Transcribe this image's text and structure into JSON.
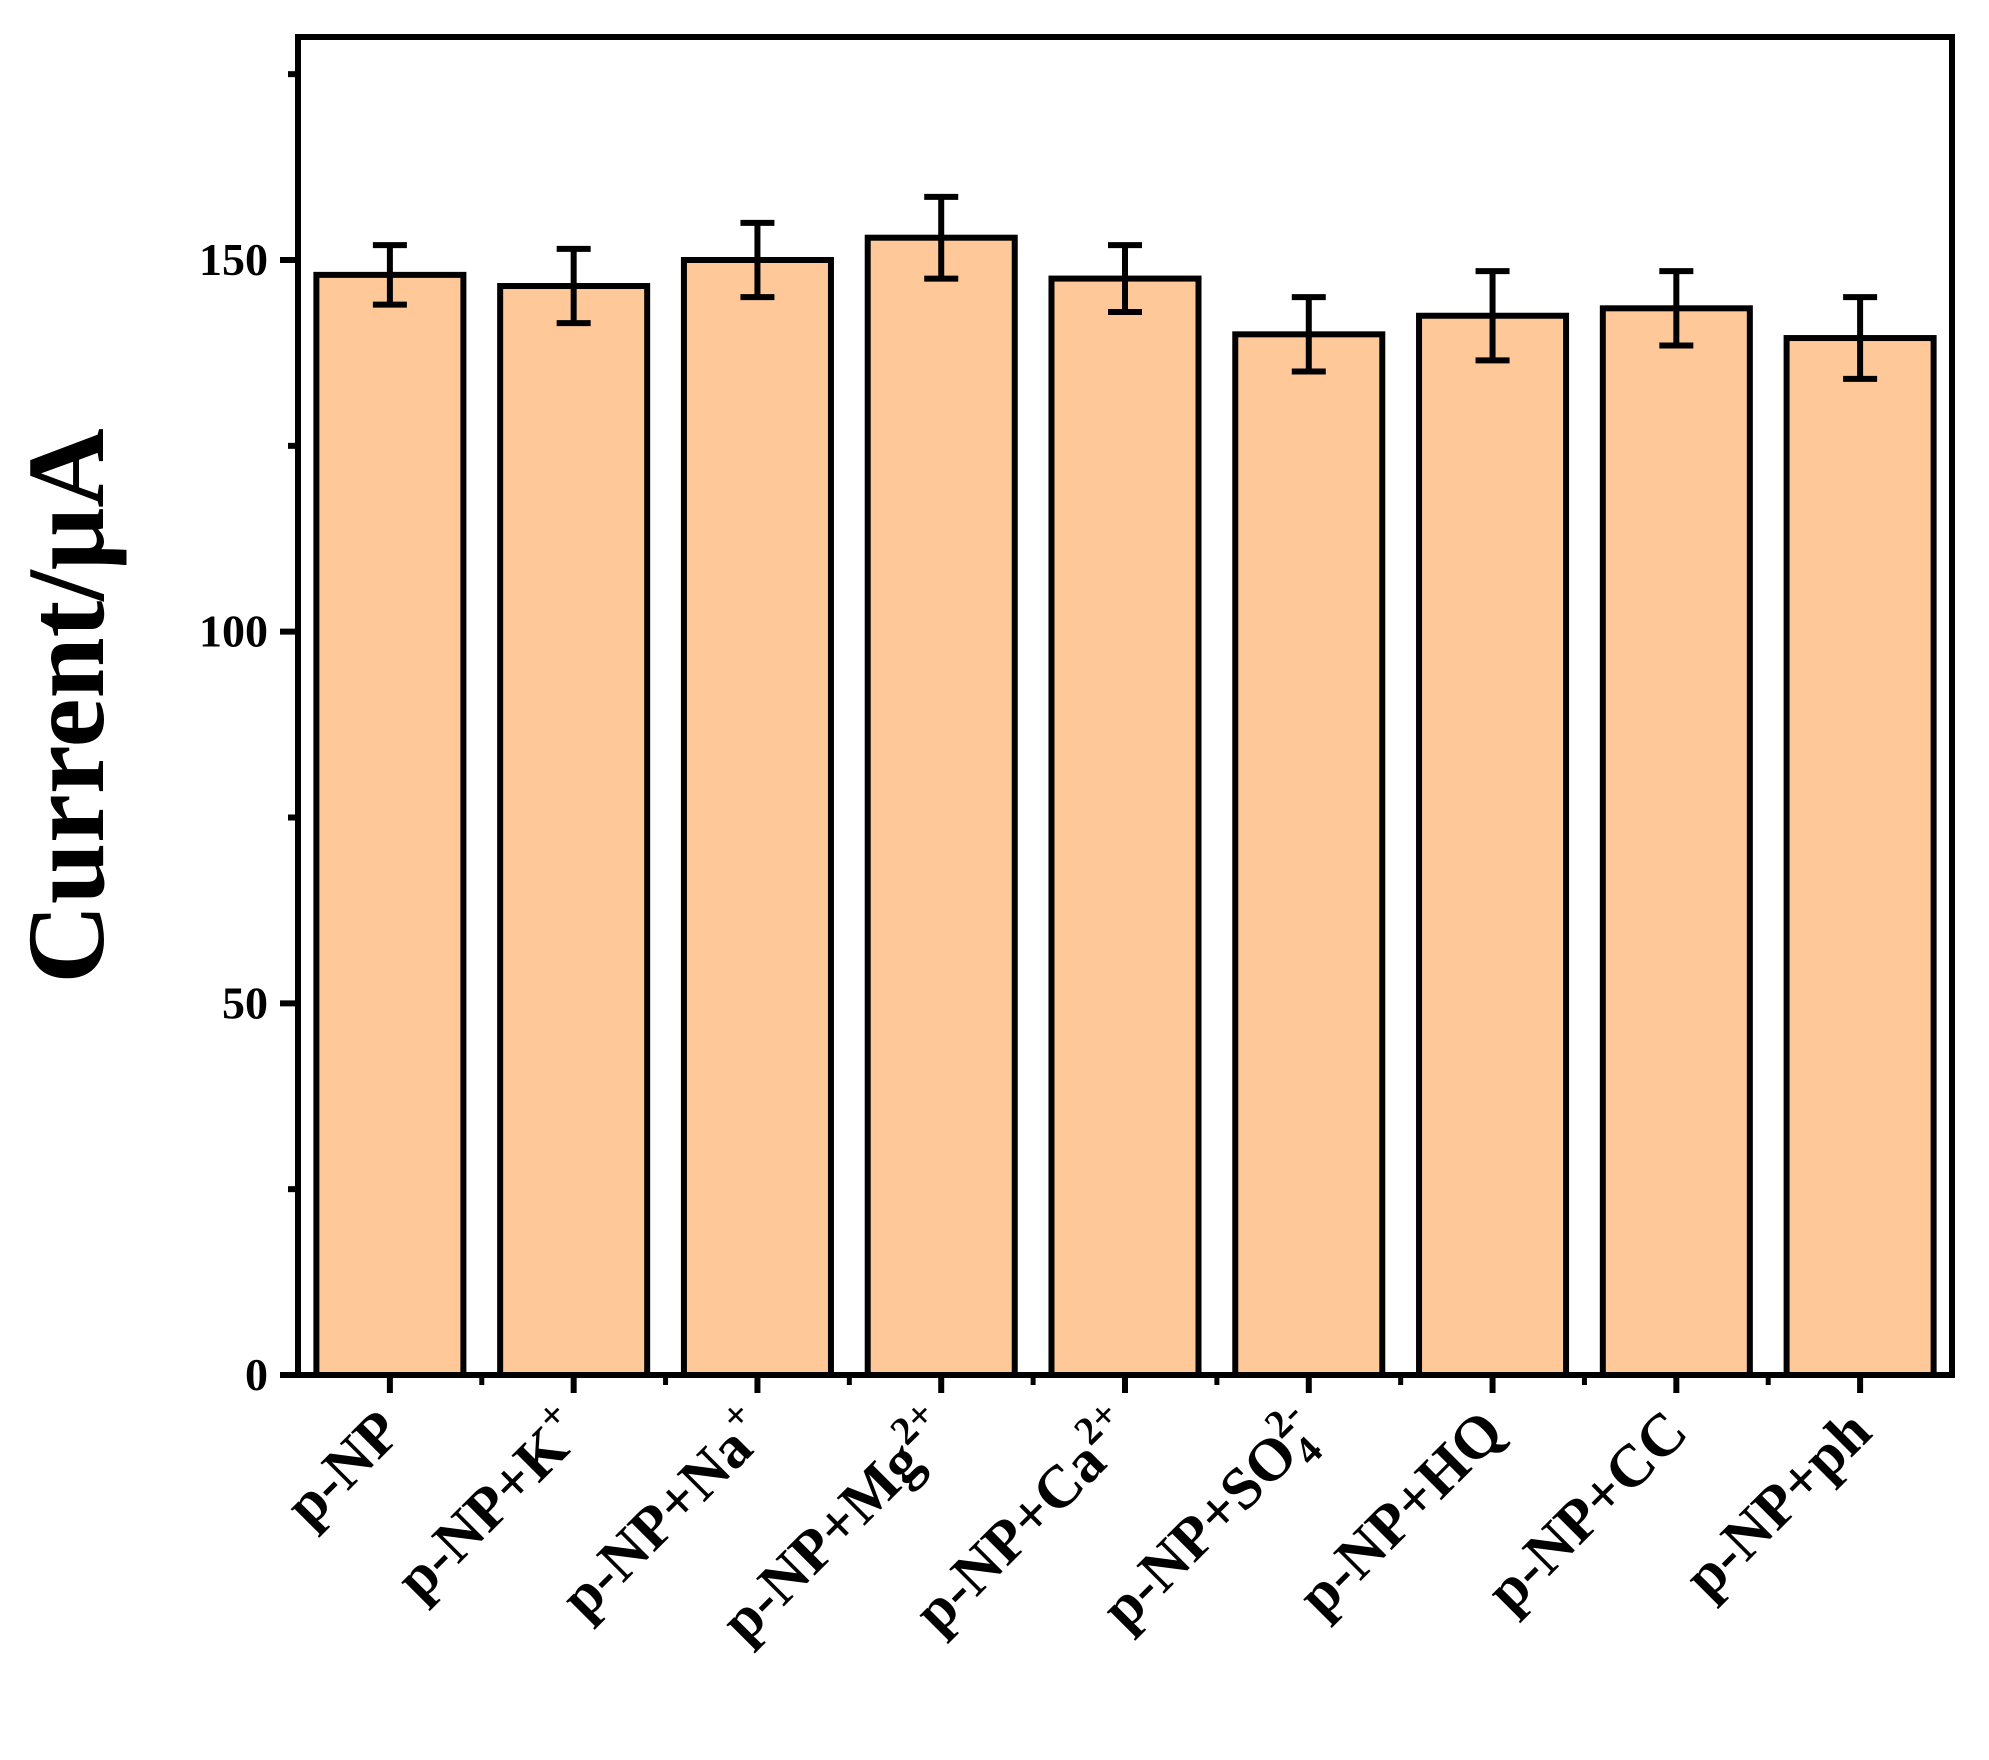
{
  "chart_data": {
    "type": "bar",
    "title": "",
    "xlabel": "",
    "ylabel": "Current/μA",
    "ylim": [
      0,
      180
    ],
    "yticks": [
      0,
      50,
      100,
      150
    ],
    "yminor_step": 25,
    "grid": false,
    "legend": "none",
    "bar_color": "#FFC899",
    "bar_edge_color": "#000000",
    "categories": [
      {
        "base": "p-NP",
        "sup": ""
      },
      {
        "base": "p-NP+K",
        "sup": "+"
      },
      {
        "base": "p-NP+Na",
        "sup": "+"
      },
      {
        "base": "p-NP+Mg",
        "sup": "2+"
      },
      {
        "base": "p-NP+Ca",
        "sup": "2+"
      },
      {
        "base": "p-NP+SO",
        "sub": "4",
        "sup": "2-"
      },
      {
        "base": "p-NP+HQ",
        "sup": ""
      },
      {
        "base": "p-NP+CC",
        "sup": ""
      },
      {
        "base": "p-NP+ph",
        "sup": ""
      }
    ],
    "values": [
      148,
      146.5,
      150,
      153,
      147.5,
      140,
      142.5,
      143.5,
      139.5
    ],
    "errors": [
      4,
      5,
      5,
      5.5,
      4.5,
      5,
      6,
      5,
      5.5
    ]
  }
}
